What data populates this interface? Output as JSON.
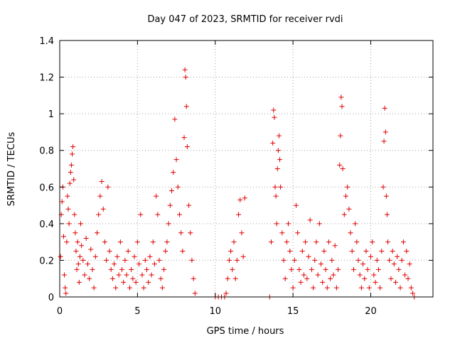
{
  "chart_data": {
    "type": "scatter",
    "title": "Day 047 of 2023, SRMTID for receiver rvdi",
    "xlabel": "GPS time / hours",
    "ylabel": "SRMTID / TECUs",
    "xlim": [
      0,
      24
    ],
    "ylim": [
      0,
      1.4
    ],
    "xticks": [
      0,
      5,
      10,
      15,
      20
    ],
    "xtick_labels": [
      "0",
      "5",
      "10",
      "15",
      "20"
    ],
    "yticks": [
      0,
      0.2,
      0.4,
      0.6,
      0.8,
      1,
      1.2,
      1.4
    ],
    "ytick_labels": [
      "0",
      "0.2",
      "0.4",
      "0.6",
      "0.8",
      "1",
      "1.2",
      "1.4"
    ],
    "grid": true,
    "marker": "+",
    "marker_color": "#e00000",
    "series": [
      {
        "name": "SRMTID",
        "points": [
          [
            0.05,
            0.22
          ],
          [
            0.1,
            0.45
          ],
          [
            0.15,
            0.52
          ],
          [
            0.2,
            0.6
          ],
          [
            0.25,
            0.33
          ],
          [
            0.3,
            0.12
          ],
          [
            0.35,
            0.05
          ],
          [
            0.4,
            0.02
          ],
          [
            0.45,
            0.3
          ],
          [
            0.5,
            0.55
          ],
          [
            0.55,
            0.48
          ],
          [
            0.6,
            0.4
          ],
          [
            0.65,
            0.62
          ],
          [
            0.7,
            0.68
          ],
          [
            0.75,
            0.72
          ],
          [
            0.8,
            0.78
          ],
          [
            0.85,
            0.82
          ],
          [
            0.9,
            0.64
          ],
          [
            0.95,
            0.45
          ],
          [
            1.0,
            0.35
          ],
          [
            1.05,
            0.25
          ],
          [
            1.1,
            0.15
          ],
          [
            1.15,
            0.3
          ],
          [
            1.2,
            0.18
          ],
          [
            1.25,
            0.08
          ],
          [
            1.3,
            0.22
          ],
          [
            1.35,
            0.4
          ],
          [
            1.4,
            0.28
          ],
          [
            1.5,
            0.2
          ],
          [
            1.6,
            0.12
          ],
          [
            1.7,
            0.32
          ],
          [
            1.8,
            0.18
          ],
          [
            1.9,
            0.1
          ],
          [
            2.0,
            0.26
          ],
          [
            2.1,
            0.15
          ],
          [
            2.2,
            0.05
          ],
          [
            2.3,
            0.22
          ],
          [
            2.4,
            0.35
          ],
          [
            2.5,
            0.45
          ],
          [
            2.6,
            0.55
          ],
          [
            2.7,
            0.63
          ],
          [
            2.8,
            0.48
          ],
          [
            2.9,
            0.3
          ],
          [
            3.0,
            0.2
          ],
          [
            3.1,
            0.6
          ],
          [
            3.2,
            0.25
          ],
          [
            3.3,
            0.15
          ],
          [
            3.4,
            0.1
          ],
          [
            3.5,
            0.18
          ],
          [
            3.6,
            0.05
          ],
          [
            3.7,
            0.22
          ],
          [
            3.8,
            0.12
          ],
          [
            3.9,
            0.3
          ],
          [
            4.0,
            0.15
          ],
          [
            4.1,
            0.08
          ],
          [
            4.2,
            0.2
          ],
          [
            4.3,
            0.12
          ],
          [
            4.4,
            0.25
          ],
          [
            4.5,
            0.05
          ],
          [
            4.6,
            0.15
          ],
          [
            4.7,
            0.1
          ],
          [
            4.8,
            0.22
          ],
          [
            4.9,
            0.08
          ],
          [
            5.0,
            0.3
          ],
          [
            5.1,
            0.18
          ],
          [
            5.2,
            0.45
          ],
          [
            5.3,
            0.12
          ],
          [
            5.4,
            0.05
          ],
          [
            5.5,
            0.2
          ],
          [
            5.6,
            0.15
          ],
          [
            5.7,
            0.08
          ],
          [
            5.8,
            0.22
          ],
          [
            5.9,
            0.12
          ],
          [
            6.0,
            0.3
          ],
          [
            6.1,
            0.18
          ],
          [
            6.2,
            0.55
          ],
          [
            6.3,
            0.45
          ],
          [
            6.4,
            0.2
          ],
          [
            6.5,
            0.1
          ],
          [
            6.6,
            0.05
          ],
          [
            6.7,
            0.15
          ],
          [
            6.8,
            0.25
          ],
          [
            6.9,
            0.3
          ],
          [
            7.0,
            0.4
          ],
          [
            7.1,
            0.5
          ],
          [
            7.2,
            0.58
          ],
          [
            7.3,
            0.68
          ],
          [
            7.4,
            0.97
          ],
          [
            7.5,
            0.75
          ],
          [
            7.6,
            0.6
          ],
          [
            7.7,
            0.45
          ],
          [
            7.8,
            0.35
          ],
          [
            7.9,
            0.25
          ],
          [
            8.0,
            0.87
          ],
          [
            8.05,
            1.24
          ],
          [
            8.1,
            1.2
          ],
          [
            8.15,
            1.04
          ],
          [
            8.2,
            0.82
          ],
          [
            8.3,
            0.5
          ],
          [
            8.4,
            0.35
          ],
          [
            8.5,
            0.2
          ],
          [
            8.6,
            0.1
          ],
          [
            8.7,
            0.02
          ],
          [
            10.0,
            0.0
          ],
          [
            10.2,
            0.0
          ],
          [
            10.4,
            0.0
          ],
          [
            10.6,
            0.0
          ],
          [
            10.7,
            0.02
          ],
          [
            10.8,
            0.1
          ],
          [
            10.9,
            0.2
          ],
          [
            11.0,
            0.25
          ],
          [
            11.1,
            0.15
          ],
          [
            11.2,
            0.3
          ],
          [
            11.3,
            0.1
          ],
          [
            11.4,
            0.2
          ],
          [
            11.5,
            0.45
          ],
          [
            11.6,
            0.53
          ],
          [
            11.7,
            0.35
          ],
          [
            11.8,
            0.22
          ],
          [
            11.9,
            0.54
          ],
          [
            13.5,
            0.0
          ],
          [
            13.6,
            0.3
          ],
          [
            13.7,
            0.84
          ],
          [
            13.75,
            1.02
          ],
          [
            13.8,
            0.98
          ],
          [
            13.85,
            0.6
          ],
          [
            13.9,
            0.55
          ],
          [
            13.95,
            0.4
          ],
          [
            14.0,
            0.7
          ],
          [
            14.05,
            0.8
          ],
          [
            14.1,
            0.88
          ],
          [
            14.15,
            0.75
          ],
          [
            14.2,
            0.6
          ],
          [
            14.3,
            0.35
          ],
          [
            14.4,
            0.2
          ],
          [
            14.5,
            0.1
          ],
          [
            14.6,
            0.3
          ],
          [
            14.7,
            0.4
          ],
          [
            14.8,
            0.25
          ],
          [
            14.9,
            0.15
          ],
          [
            15.0,
            0.05
          ],
          [
            15.1,
            0.2
          ],
          [
            15.2,
            0.5
          ],
          [
            15.3,
            0.35
          ],
          [
            15.4,
            0.15
          ],
          [
            15.5,
            0.08
          ],
          [
            15.6,
            0.25
          ],
          [
            15.7,
            0.12
          ],
          [
            15.8,
            0.3
          ],
          [
            15.9,
            0.1
          ],
          [
            16.0,
            0.22
          ],
          [
            16.1,
            0.42
          ],
          [
            16.2,
            0.15
          ],
          [
            16.3,
            0.05
          ],
          [
            16.4,
            0.2
          ],
          [
            16.5,
            0.3
          ],
          [
            16.6,
            0.12
          ],
          [
            16.7,
            0.4
          ],
          [
            16.8,
            0.18
          ],
          [
            16.9,
            0.08
          ],
          [
            17.0,
            0.25
          ],
          [
            17.1,
            0.15
          ],
          [
            17.2,
            0.05
          ],
          [
            17.3,
            0.3
          ],
          [
            17.4,
            0.1
          ],
          [
            17.5,
            0.2
          ],
          [
            17.6,
            0.12
          ],
          [
            17.7,
            0.28
          ],
          [
            17.8,
            0.05
          ],
          [
            17.9,
            0.15
          ],
          [
            18.0,
            0.72
          ],
          [
            18.05,
            0.88
          ],
          [
            18.1,
            1.09
          ],
          [
            18.15,
            1.04
          ],
          [
            18.2,
            0.7
          ],
          [
            18.3,
            0.45
          ],
          [
            18.4,
            0.55
          ],
          [
            18.5,
            0.6
          ],
          [
            18.6,
            0.48
          ],
          [
            18.7,
            0.35
          ],
          [
            18.8,
            0.25
          ],
          [
            18.9,
            0.15
          ],
          [
            19.0,
            0.4
          ],
          [
            19.1,
            0.3
          ],
          [
            19.2,
            0.2
          ],
          [
            19.3,
            0.12
          ],
          [
            19.4,
            0.05
          ],
          [
            19.5,
            0.18
          ],
          [
            19.6,
            0.1
          ],
          [
            19.7,
            0.25
          ],
          [
            19.8,
            0.15
          ],
          [
            19.9,
            0.05
          ],
          [
            20.0,
            0.22
          ],
          [
            20.1,
            0.3
          ],
          [
            20.2,
            0.12
          ],
          [
            20.3,
            0.08
          ],
          [
            20.4,
            0.2
          ],
          [
            20.5,
            0.15
          ],
          [
            20.6,
            0.05
          ],
          [
            20.7,
            0.25
          ],
          [
            20.8,
            0.6
          ],
          [
            20.85,
            0.85
          ],
          [
            20.9,
            1.03
          ],
          [
            20.95,
            0.9
          ],
          [
            21.0,
            0.55
          ],
          [
            21.05,
            0.45
          ],
          [
            21.1,
            0.3
          ],
          [
            21.2,
            0.2
          ],
          [
            21.3,
            0.1
          ],
          [
            21.4,
            0.25
          ],
          [
            21.5,
            0.18
          ],
          [
            21.6,
            0.08
          ],
          [
            21.7,
            0.22
          ],
          [
            21.8,
            0.15
          ],
          [
            21.9,
            0.05
          ],
          [
            22.0,
            0.2
          ],
          [
            22.1,
            0.3
          ],
          [
            22.2,
            0.12
          ],
          [
            22.3,
            0.25
          ],
          [
            22.4,
            0.1
          ],
          [
            22.5,
            0.18
          ],
          [
            22.6,
            0.05
          ],
          [
            22.7,
            0.02
          ],
          [
            22.8,
            0.0
          ]
        ]
      }
    ]
  }
}
